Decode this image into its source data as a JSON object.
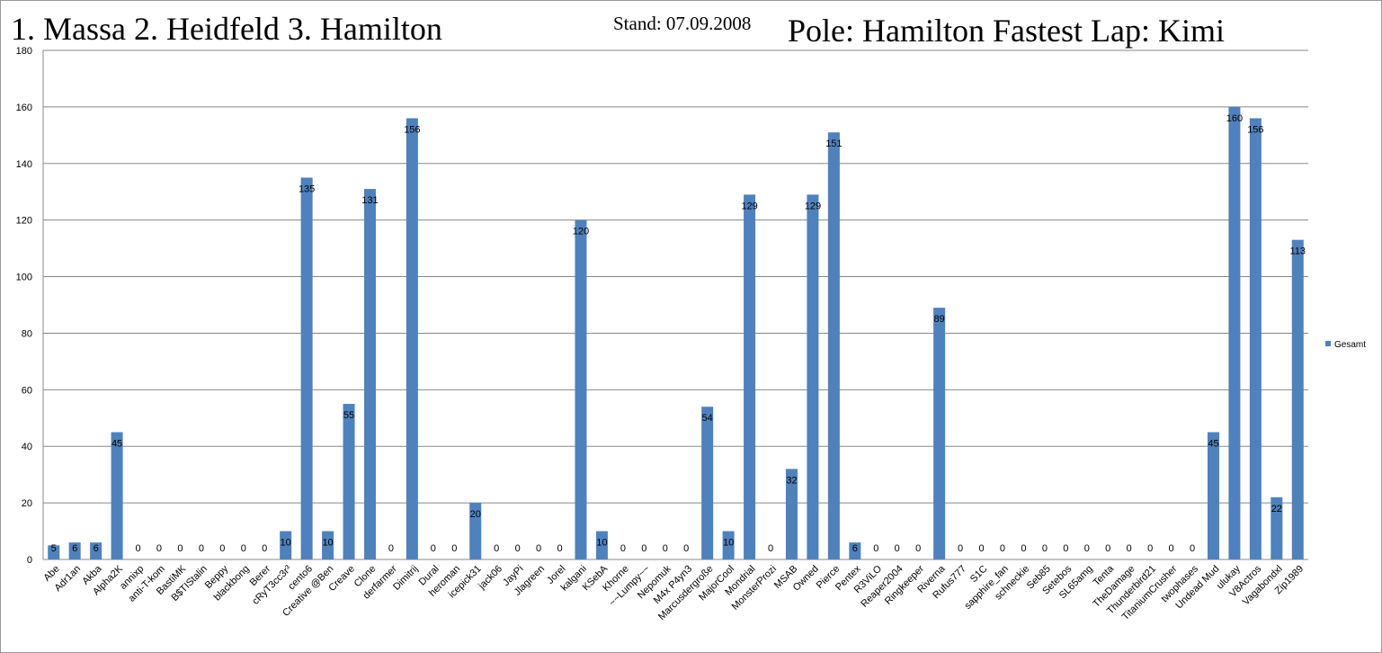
{
  "chart_data": {
    "type": "bar",
    "title": "1. Massa 2. Heidfeld 3. Hamilton",
    "subtitle": "Stand: 07.09.2008",
    "annotations": [
      "Pole: Hamilton Fastest Lap: Kimi"
    ],
    "categories": [
      "Abe",
      "Adr1an",
      "Akba",
      "Alpha2K",
      "annixp",
      "anti-T-kom",
      "BastiMK",
      "B$TIStalin",
      "Beppy",
      "blackbong",
      "Berer",
      "cRyT3cc3r³",
      "cento6",
      "Creative @Ben",
      "Creave",
      "Clone",
      "derfarmer",
      "Dimitrij",
      "Dural",
      "heroman",
      "icepick31",
      "jack06",
      "JayPi",
      "Jlagreen",
      "Jorel",
      "kalgani",
      "KSebA",
      "Khorne",
      "~~Lumpy~~",
      "Nepomuk",
      "M4x P4yn3",
      "Marcusdergroße",
      "MajorCool",
      "Mondrial",
      "MonsterProzi",
      "MSAB",
      "Owned",
      "Pierce",
      "Pentex",
      "R3ViLO",
      "Reaper2004",
      "Ringkeeper",
      "Riverna",
      "Rufus777",
      "S1C",
      "sapphire_fan",
      "schneckie",
      "Seb85",
      "Setebos",
      "SL65amg",
      "Tenta",
      "TheDamage",
      "Thunderbird21",
      "TitaniumCrusher",
      "twophases",
      "Undead Mud",
      "ulukay",
      "V8Actros",
      "Vagabondxl",
      "Zip1989"
    ],
    "series": [
      {
        "name": "Gesamt",
        "color": "#4f81bd",
        "values": [
          5,
          6,
          6,
          45,
          0,
          0,
          0,
          0,
          0,
          0,
          0,
          10,
          135,
          10,
          55,
          131,
          0,
          156,
          0,
          0,
          20,
          0,
          0,
          0,
          0,
          120,
          10,
          0,
          0,
          0,
          0,
          54,
          10,
          129,
          0,
          32,
          129,
          151,
          6,
          0,
          0,
          0,
          89,
          0,
          0,
          0,
          0,
          0,
          0,
          0,
          0,
          0,
          0,
          0,
          0,
          45,
          160,
          156,
          22,
          113
        ]
      }
    ],
    "ylim": [
      0,
      180
    ],
    "yticks": [
      0,
      20,
      40,
      60,
      80,
      100,
      120,
      140,
      160,
      180
    ],
    "grid": true,
    "legend": "right"
  }
}
